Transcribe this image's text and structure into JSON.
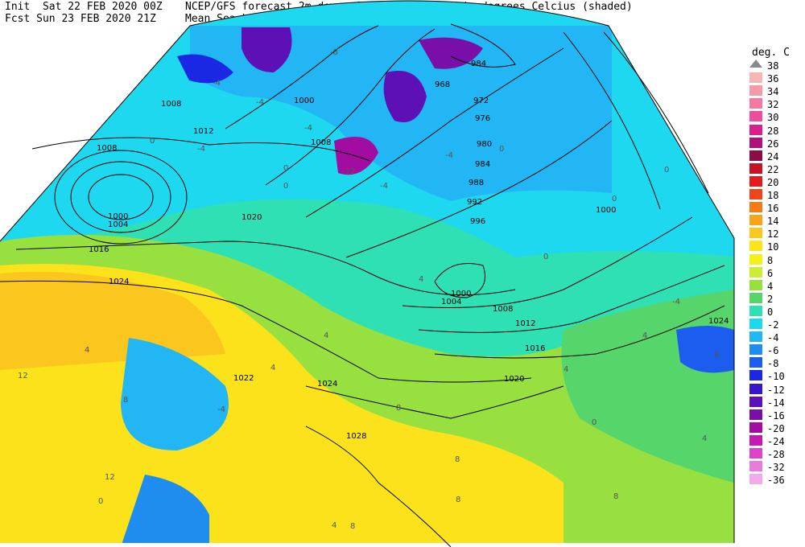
{
  "header": {
    "line1_left": "Init  Sat 22 FEB 2020 00Z",
    "line2_left": "Fcst Sun 23 FEB 2020 21Z",
    "line1_right": "NCEP/GFS forecast 2m dew point temperatures in degrees Celcius (shaded)",
    "line2_right": "Mean Sea-Level Pressure (hPa) (black)."
  },
  "legend": {
    "title": "deg. C",
    "items": [
      {
        "label": "38",
        "color": "#8a8a8a"
      },
      {
        "label": "36",
        "color": "#f7b6b6"
      },
      {
        "label": "34",
        "color": "#f59aa8"
      },
      {
        "label": "32",
        "color": "#f27aa0"
      },
      {
        "label": "30",
        "color": "#ee4d9a"
      },
      {
        "label": "28",
        "color": "#d81f8a"
      },
      {
        "label": "26",
        "color": "#b0107a"
      },
      {
        "label": "24",
        "color": "#8c0c45"
      },
      {
        "label": "22",
        "color": "#c41424"
      },
      {
        "label": "20",
        "color": "#e21c1c"
      },
      {
        "label": "18",
        "color": "#f0441a"
      },
      {
        "label": "16",
        "color": "#f67a18"
      },
      {
        "label": "14",
        "color": "#f9a31a"
      },
      {
        "label": "12",
        "color": "#fbc71e"
      },
      {
        "label": "10",
        "color": "#fde41a"
      },
      {
        "label": "8",
        "color": "#f2f21a"
      },
      {
        "label": "6",
        "color": "#cdec36"
      },
      {
        "label": "4",
        "color": "#98e040"
      },
      {
        "label": "2",
        "color": "#56d66a"
      },
      {
        "label": "0",
        "color": "#2ee0b4"
      },
      {
        "label": "-2",
        "color": "#1ed8f0"
      },
      {
        "label": "-4",
        "color": "#22b6f4"
      },
      {
        "label": "-6",
        "color": "#1f8cf0"
      },
      {
        "label": "-8",
        "color": "#1c5cee"
      },
      {
        "label": "-10",
        "color": "#1a28e6"
      },
      {
        "label": "-12",
        "color": "#3a14c8"
      },
      {
        "label": "-14",
        "color": "#5c10b6"
      },
      {
        "label": "-16",
        "color": "#7a0ea8"
      },
      {
        "label": "-20",
        "color": "#a20ca0"
      },
      {
        "label": "-24",
        "color": "#c818b4"
      },
      {
        "label": "-28",
        "color": "#dc44cc"
      },
      {
        "label": "-32",
        "color": "#ea7ade"
      },
      {
        "label": "-36",
        "color": "#f4a8ee"
      }
    ]
  },
  "isobar_labels": [
    "964",
    "968",
    "972",
    "976",
    "980",
    "984",
    "988",
    "992",
    "996",
    "1000",
    "1000",
    "1004",
    "1004",
    "1008",
    "1008",
    "1008",
    "1012",
    "1012",
    "1016",
    "1016",
    "1020",
    "1020",
    "1024",
    "1024",
    "1024",
    "1024",
    "1028",
    "1000",
    "1012",
    "1016",
    "1020",
    "1022"
  ],
  "dewpoint_labels": [
    "-8",
    "-4",
    "-4",
    "-4",
    "-4",
    "-12",
    "-4",
    "-4",
    "-4",
    "0",
    "0",
    "0",
    "0",
    "0",
    "0",
    "0",
    "0",
    "4",
    "4",
    "4",
    "4",
    "4",
    "4",
    "4",
    "4",
    "8",
    "8",
    "8",
    "8",
    "8",
    "8",
    "8",
    "12",
    "12",
    "-4",
    "-8",
    "0"
  ]
}
